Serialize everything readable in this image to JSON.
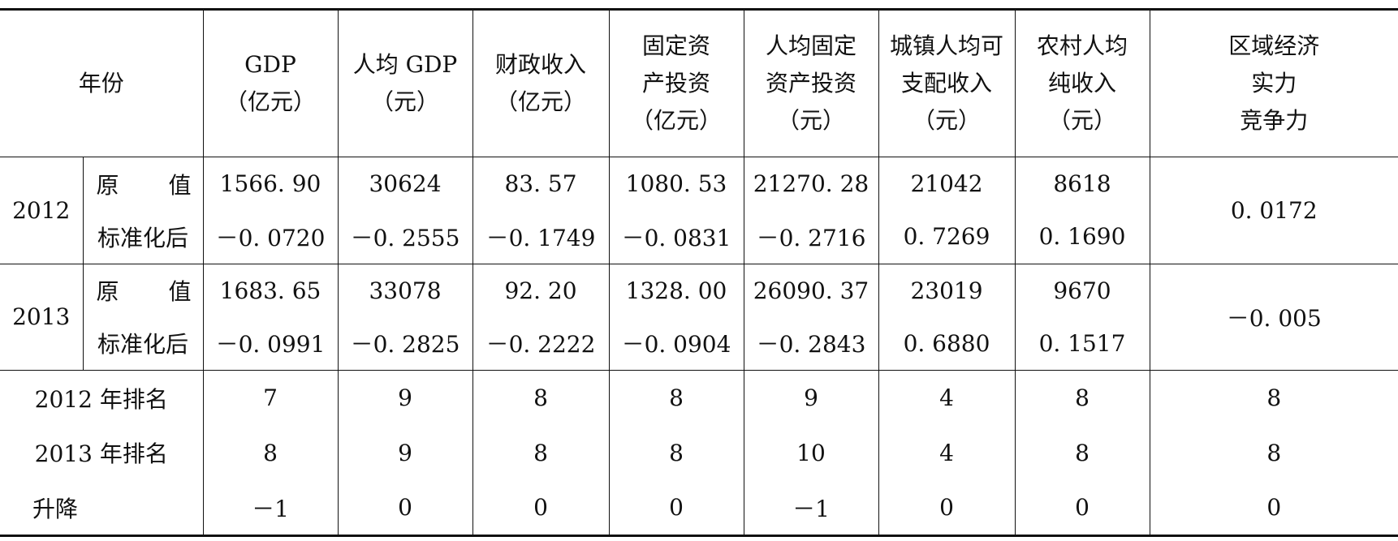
{
  "header": {
    "year_label_a": "年",
    "year_label_b": "份",
    "columns": [
      {
        "lines": [
          "GDP",
          "（亿元）"
        ]
      },
      {
        "lines": [
          "人均 GDP",
          "（元）"
        ]
      },
      {
        "lines": [
          "财政收入",
          "（亿元）"
        ]
      },
      {
        "lines": [
          "固定资",
          "产投资",
          "（亿元）"
        ]
      },
      {
        "lines": [
          "人均固定",
          "资产投资",
          "（元）"
        ]
      },
      {
        "lines": [
          "城镇人均可",
          "支配收入",
          "（元）"
        ]
      },
      {
        "lines": [
          "农村人均",
          "纯收入",
          "（元）"
        ]
      },
      {
        "lines": [
          "区域经济",
          "实力",
          "竞争力"
        ]
      }
    ]
  },
  "years": [
    {
      "year": "2012",
      "raw_label_a": "原",
      "raw_label_b": "值",
      "std_label": "标准化后",
      "raw": [
        "1566. 90",
        "30624",
        "83. 57",
        "1080. 53",
        "21270. 28",
        "21042",
        "8618"
      ],
      "std": [
        "－0. 0720",
        "－0. 2555",
        "－0. 1749",
        "－0. 0831",
        "－0. 2716",
        "0. 7269",
        "0. 1690"
      ],
      "competitiveness": "0. 0172"
    },
    {
      "year": "2013",
      "raw_label_a": "原",
      "raw_label_b": "值",
      "std_label": "标准化后",
      "raw": [
        "1683. 65",
        "33078",
        "92. 20",
        "1328. 00",
        "26090. 37",
        "23019",
        "9670"
      ],
      "std": [
        "－0. 0991",
        "－0. 2825",
        "－0. 2222",
        "－0. 0904",
        "－0. 2843",
        "0. 6880",
        "0. 1517"
      ],
      "competitiveness": "－0. 005"
    }
  ],
  "rankings": [
    {
      "label": "2012 年排名",
      "values": [
        "7",
        "9",
        "8",
        "8",
        "9",
        "4",
        "8",
        "8"
      ]
    },
    {
      "label": "2013 年排名",
      "values": [
        "8",
        "9",
        "8",
        "8",
        "10",
        "4",
        "8",
        "8"
      ]
    },
    {
      "label": "升降",
      "values": [
        "－1",
        "0",
        "0",
        "0",
        "－1",
        "0",
        "0",
        "0"
      ]
    }
  ]
}
